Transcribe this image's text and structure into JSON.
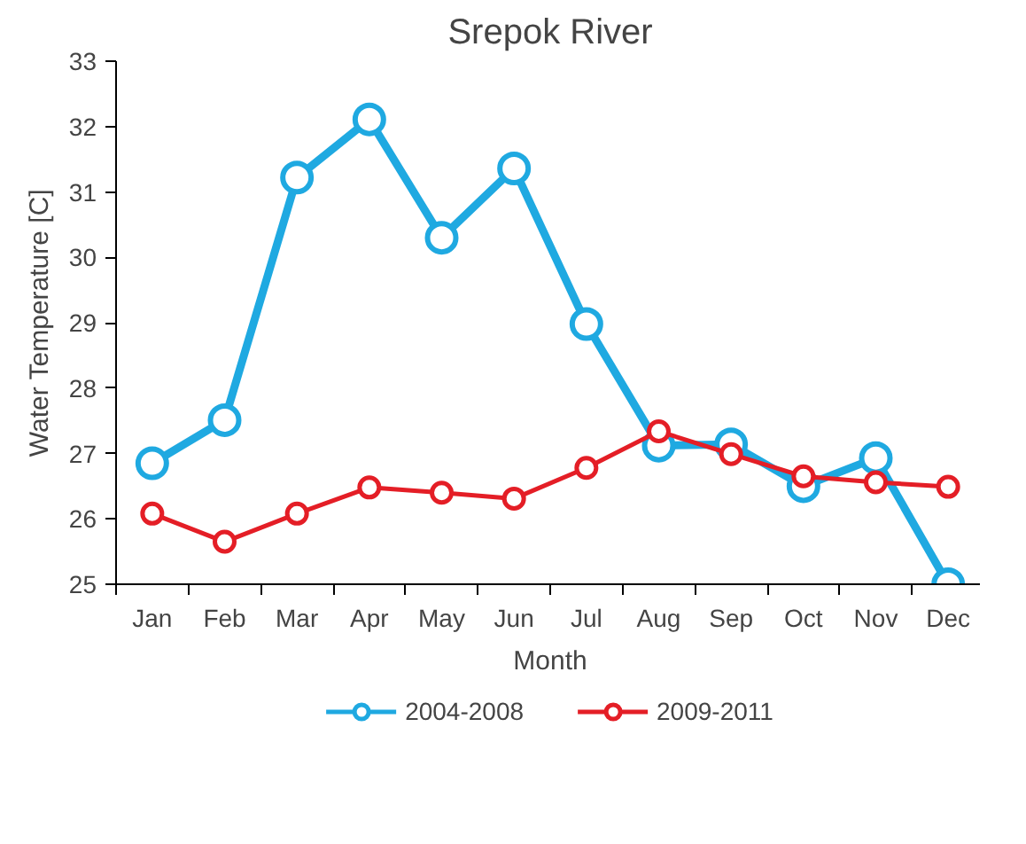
{
  "chart_data": {
    "type": "line",
    "title": "Srepok River",
    "xlabel": "Month",
    "ylabel": "Water Temperature [C]",
    "categories": [
      "Jan",
      "Feb",
      "Mar",
      "Apr",
      "May",
      "Jun",
      "Jul",
      "Aug",
      "Sep",
      "Oct",
      "Nov",
      "Dec"
    ],
    "series": [
      {
        "name": "2004-2008",
        "color": "#1fa9e1",
        "values": [
          26.85,
          27.51,
          31.22,
          32.11,
          30.3,
          31.36,
          28.98,
          27.12,
          27.14,
          26.5,
          26.93,
          25.0
        ]
      },
      {
        "name": "2009-2011",
        "color": "#e41e26",
        "values": [
          26.08,
          25.65,
          26.08,
          26.48,
          26.4,
          26.31,
          26.78,
          27.34,
          26.99,
          26.65,
          26.56,
          26.49
        ]
      }
    ],
    "ylim": [
      25,
      33
    ],
    "yticks": [
      25,
      26,
      27,
      28,
      29,
      30,
      31,
      32,
      33
    ],
    "grid": false,
    "legend": "bottom",
    "marker": "circle",
    "line_style": "solid"
  }
}
